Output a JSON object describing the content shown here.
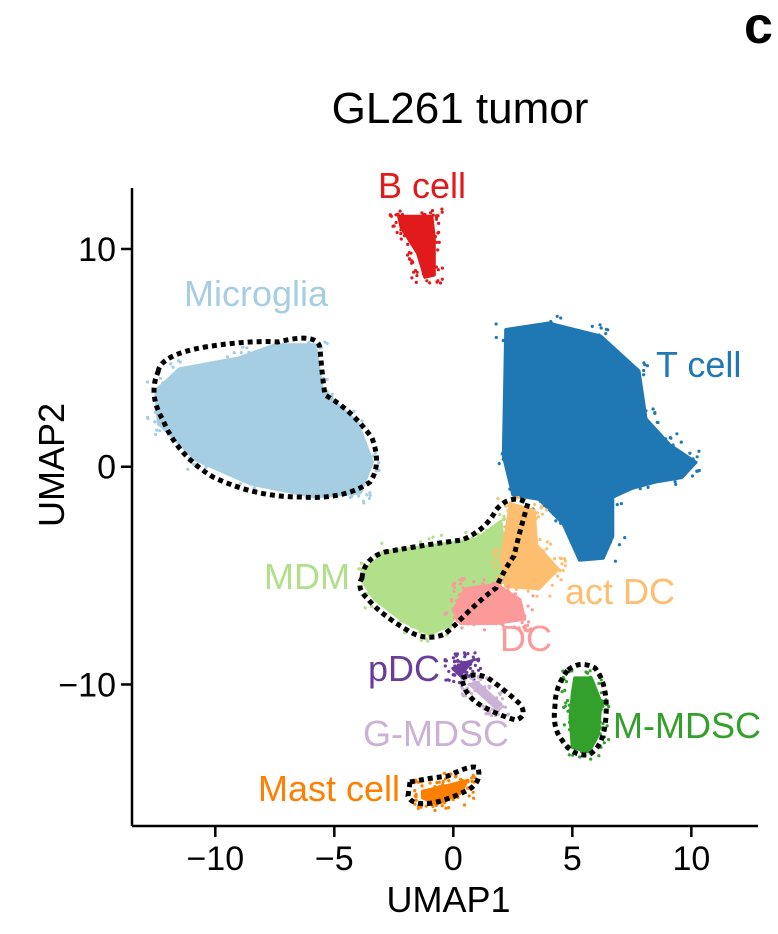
{
  "panel_letter": "c",
  "chart_data": {
    "type": "scatter",
    "title": "GL261 tumor",
    "xlabel": "UMAP1",
    "ylabel": "UMAP2",
    "xlim": [
      -13.5,
      12.8
    ],
    "ylim": [
      -16.5,
      12.8
    ],
    "xticks": [
      -10,
      -5,
      0,
      5,
      10
    ],
    "yticks": [
      -10,
      0,
      10
    ],
    "xtick_labels": [
      "−10",
      "−5",
      "0",
      "5",
      "10"
    ],
    "ytick_labels": [
      "−10",
      "0",
      "10"
    ],
    "grid": false,
    "legend": "none (clusters labeled directly)",
    "clusters": [
      {
        "name": "B cell",
        "color": "#e31a1c",
        "center": [
          -1.1,
          10.1
        ],
        "outline": [
          [
            -2.3,
            11.5
          ],
          [
            -0.9,
            11.5
          ],
          [
            -0.8,
            10.5
          ],
          [
            -0.8,
            8.8
          ],
          [
            -1.2,
            8.7
          ],
          [
            -1.5,
            9.8
          ],
          [
            -2.2,
            11.0
          ]
        ]
      },
      {
        "name": "Microglia",
        "color": "#a6cee3",
        "center": [
          -8.5,
          2.5
        ],
        "outline": [
          [
            -12.5,
            3.5
          ],
          [
            -11.5,
            4.5
          ],
          [
            -9.0,
            5.0
          ],
          [
            -7.5,
            5.6
          ],
          [
            -5.8,
            5.6
          ],
          [
            -5.5,
            3.5
          ],
          [
            -4.0,
            2.0
          ],
          [
            -3.4,
            0.2
          ],
          [
            -3.9,
            -1.2
          ],
          [
            -5.8,
            -1.4
          ],
          [
            -8.5,
            -0.8
          ],
          [
            -10.8,
            0.3
          ],
          [
            -12.4,
            2.0
          ]
        ]
      },
      {
        "name": "T cell",
        "color": "#1f78b4",
        "center": [
          5.5,
          2.2
        ],
        "outline": [
          [
            2.2,
            6.3
          ],
          [
            4.0,
            6.6
          ],
          [
            6.2,
            6.0
          ],
          [
            7.8,
            4.4
          ],
          [
            8.1,
            2.2
          ],
          [
            9.1,
            1.0
          ],
          [
            10.2,
            0.2
          ],
          [
            9.6,
            -0.5
          ],
          [
            8.5,
            -0.7
          ],
          [
            7.5,
            -1.0
          ],
          [
            6.7,
            -1.4
          ],
          [
            6.7,
            -3.2
          ],
          [
            6.3,
            -4.2
          ],
          [
            5.3,
            -4.3
          ],
          [
            4.6,
            -2.6
          ],
          [
            3.6,
            -1.5
          ],
          [
            2.5,
            -1.3
          ],
          [
            2.1,
            0.5
          ]
        ]
      },
      {
        "name": "MDM",
        "color": "#b2df8a",
        "center": [
          -1.0,
          -5.0
        ],
        "outline": [
          [
            -3.8,
            -4.8
          ],
          [
            -2.8,
            -3.9
          ],
          [
            -0.8,
            -3.6
          ],
          [
            1.0,
            -3.3
          ],
          [
            2.0,
            -2.5
          ],
          [
            2.2,
            -4.2
          ],
          [
            1.9,
            -5.4
          ],
          [
            0.5,
            -6.3
          ],
          [
            -0.2,
            -7.3
          ],
          [
            -1.0,
            -7.7
          ],
          [
            -2.1,
            -7.1
          ],
          [
            -3.3,
            -6.1
          ],
          [
            -3.8,
            -5.3
          ]
        ]
      },
      {
        "name": "act DC",
        "color": "#fdbf6f",
        "center": [
          3.2,
          -4.6
        ],
        "outline": [
          [
            2.4,
            -1.7
          ],
          [
            3.4,
            -2.0
          ],
          [
            3.5,
            -3.6
          ],
          [
            4.4,
            -4.7
          ],
          [
            3.6,
            -5.6
          ],
          [
            2.2,
            -5.5
          ],
          [
            2.0,
            -4.3
          ]
        ]
      },
      {
        "name": "DC",
        "color": "#fb9a99",
        "center": [
          1.2,
          -6.4
        ],
        "outline": [
          [
            0.5,
            -5.6
          ],
          [
            1.8,
            -5.4
          ],
          [
            2.8,
            -6.1
          ],
          [
            3.0,
            -7.0
          ],
          [
            1.8,
            -7.2
          ],
          [
            0.3,
            -7.2
          ],
          [
            0.0,
            -6.6
          ]
        ]
      },
      {
        "name": "pDC",
        "color": "#6a3d9a",
        "center": [
          0.3,
          -9.3
        ],
        "outline": [
          [
            0.0,
            -9.3
          ],
          [
            0.3,
            -9.6
          ],
          [
            0.8,
            -8.9
          ],
          [
            0.5,
            -9.0
          ]
        ]
      },
      {
        "name": "G-MDSC",
        "color": "#cab2d6",
        "center": [
          1.2,
          -10.4
        ],
        "outline": [
          [
            0.7,
            -10.0
          ],
          [
            1.0,
            -9.9
          ],
          [
            2.0,
            -10.9
          ],
          [
            1.8,
            -11.1
          ]
        ]
      },
      {
        "name": "M-MDSC",
        "color": "#33a02c",
        "center": [
          5.6,
          -11.5
        ],
        "outline": [
          [
            5.1,
            -9.7
          ],
          [
            5.8,
            -9.7
          ],
          [
            6.2,
            -10.8
          ],
          [
            6.1,
            -12.3
          ],
          [
            5.7,
            -13.1
          ],
          [
            5.0,
            -12.9
          ],
          [
            4.9,
            -11.5
          ],
          [
            5.0,
            -10.4
          ]
        ]
      },
      {
        "name": "Mast cell",
        "color": "#ff7f00",
        "center": [
          -0.5,
          -14.9
        ],
        "outline": [
          [
            -1.3,
            -14.9
          ],
          [
            -0.1,
            -14.6
          ],
          [
            0.6,
            -14.4
          ],
          [
            0.3,
            -15.0
          ],
          [
            -0.7,
            -15.5
          ],
          [
            -1.3,
            -15.2
          ]
        ]
      }
    ]
  }
}
